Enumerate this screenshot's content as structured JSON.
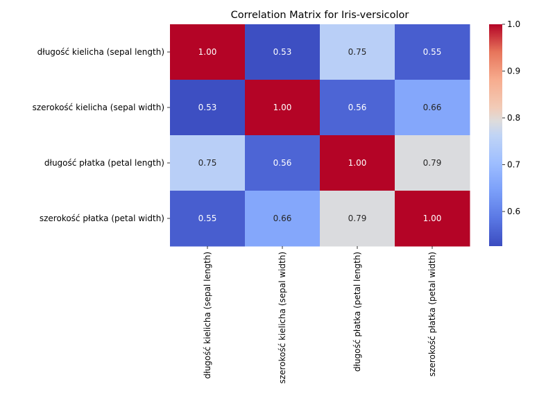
{
  "chart_data": {
    "type": "heatmap",
    "title": "Correlation Matrix for Iris-versicolor",
    "xlabel": "",
    "ylabel": "",
    "row_labels": [
      "długość kielicha (sepal length)",
      "szerokość kielicha (sepal width)",
      "długość płatka (petal length)",
      "szerokość płatka (petal width)"
    ],
    "col_labels": [
      "długość kielicha (sepal length)",
      "szerokość kielicha (sepal width)",
      "długość płatka (petal length)",
      "szerokość płatka (petal width)"
    ],
    "values": [
      [
        1.0,
        0.53,
        0.75,
        0.55
      ],
      [
        0.53,
        1.0,
        0.56,
        0.66
      ],
      [
        0.75,
        0.56,
        1.0,
        0.79
      ],
      [
        0.55,
        0.66,
        0.79,
        1.0
      ]
    ],
    "value_format_decimals": 2,
    "colormap": "coolwarm",
    "color_range": [
      0.526,
      1.0
    ],
    "colorbar_ticks": [
      0.6,
      0.7,
      0.8,
      0.9,
      1.0
    ],
    "colorbar_tick_labels": [
      "0.6",
      "0.7",
      "0.8",
      "0.9",
      "1.0"
    ],
    "grid": false,
    "legend": "colorbar-right"
  }
}
